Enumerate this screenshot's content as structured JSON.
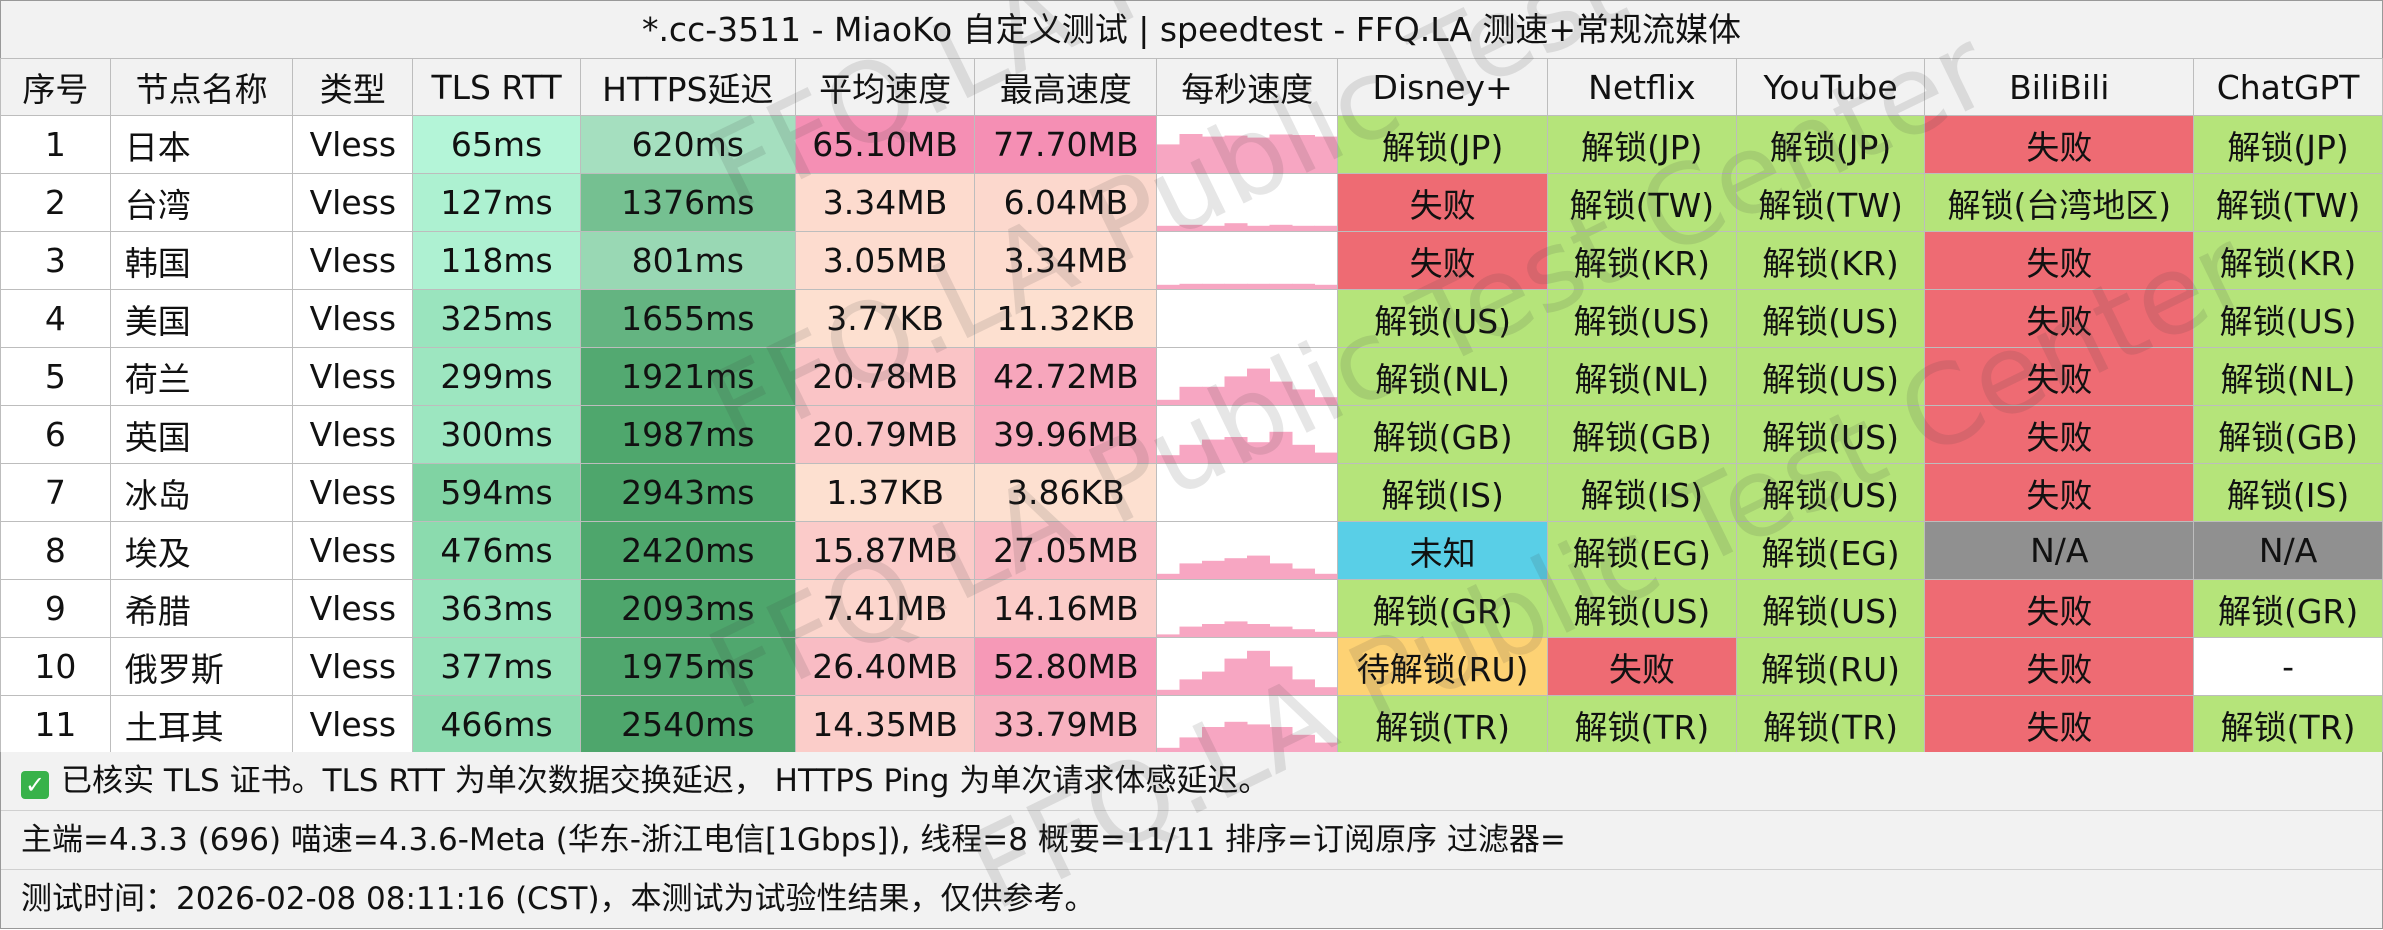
{
  "window": {
    "title": "*.cc-3511 - MiaoKo 自定义测试 | speedtest - FFQ.LA 测速+常规流媒体"
  },
  "table": {
    "headers": [
      "序号",
      "节点名称",
      "类型",
      "TLS RTT",
      "HTTPS延迟",
      "平均速度",
      "最高速度",
      "每秒速度",
      "Disney+",
      "Netflix",
      "YouTube",
      "BiliBili",
      "ChatGPT"
    ],
    "rows": [
      {
        "no": "1",
        "name": "日本",
        "type": "Vless",
        "tls": "65ms",
        "https": "620ms",
        "avg": "65.10MB",
        "max": "77.70MB",
        "spark": [
          0.55,
          0.75,
          0.7,
          0.72,
          0.68,
          0.74,
          0.73,
          0.7
        ],
        "disney": "解锁(JP)",
        "netflix": "解锁(JP)",
        "youtube": "解锁(JP)",
        "bili": "失败",
        "chatgpt": "解锁(JP)"
      },
      {
        "no": "2",
        "name": "台湾",
        "type": "Vless",
        "tls": "127ms",
        "https": "1376ms",
        "avg": "3.34MB",
        "max": "6.04MB",
        "spark": [
          0.1,
          0.12,
          0.1,
          0.15,
          0.1,
          0.12,
          0.1,
          0.1
        ],
        "disney": "失败",
        "netflix": "解锁(TW)",
        "youtube": "解锁(TW)",
        "bili": "解锁(台湾地区)",
        "chatgpt": "解锁(TW)"
      },
      {
        "no": "3",
        "name": "韩国",
        "type": "Vless",
        "tls": "118ms",
        "https": "801ms",
        "avg": "3.05MB",
        "max": "3.34MB",
        "spark": [
          0.08,
          0.1,
          0.1,
          0.1,
          0.1,
          0.1,
          0.1,
          0.08
        ],
        "disney": "失败",
        "netflix": "解锁(KR)",
        "youtube": "解锁(KR)",
        "bili": "失败",
        "chatgpt": "解锁(KR)"
      },
      {
        "no": "4",
        "name": "美国",
        "type": "Vless",
        "tls": "325ms",
        "https": "1655ms",
        "avg": "3.77KB",
        "max": "11.32KB",
        "spark": [
          0,
          0,
          0,
          0,
          0,
          0,
          0,
          0
        ],
        "disney": "解锁(US)",
        "netflix": "解锁(US)",
        "youtube": "解锁(US)",
        "bili": "失败",
        "chatgpt": "解锁(US)"
      },
      {
        "no": "5",
        "name": "荷兰",
        "type": "Vless",
        "tls": "299ms",
        "https": "1921ms",
        "avg": "20.78MB",
        "max": "42.72MB",
        "spark": [
          0.1,
          0.35,
          0.35,
          0.55,
          0.7,
          0.45,
          0.3,
          0.15
        ],
        "disney": "解锁(NL)",
        "netflix": "解锁(NL)",
        "youtube": "解锁(US)",
        "bili": "失败",
        "chatgpt": "解锁(NL)"
      },
      {
        "no": "6",
        "name": "英国",
        "type": "Vless",
        "tls": "300ms",
        "https": "1987ms",
        "avg": "20.79MB",
        "max": "39.96MB",
        "spark": [
          0.15,
          0.35,
          0.45,
          0.5,
          0.4,
          0.6,
          0.35,
          0.2
        ],
        "disney": "解锁(GB)",
        "netflix": "解锁(GB)",
        "youtube": "解锁(US)",
        "bili": "失败",
        "chatgpt": "解锁(GB)"
      },
      {
        "no": "7",
        "name": "冰岛",
        "type": "Vless",
        "tls": "594ms",
        "https": "2943ms",
        "avg": "1.37KB",
        "max": "3.86KB",
        "spark": [
          0,
          0,
          0,
          0,
          0,
          0,
          0,
          0
        ],
        "disney": "解锁(IS)",
        "netflix": "解锁(IS)",
        "youtube": "解锁(US)",
        "bili": "失败",
        "chatgpt": "解锁(IS)"
      },
      {
        "no": "8",
        "name": "埃及",
        "type": "Vless",
        "tls": "476ms",
        "https": "2420ms",
        "avg": "15.87MB",
        "max": "27.05MB",
        "spark": [
          0.1,
          0.3,
          0.35,
          0.4,
          0.45,
          0.3,
          0.2,
          0.1
        ],
        "disney": "未知",
        "netflix": "解锁(EG)",
        "youtube": "解锁(EG)",
        "bili": "N/A",
        "chatgpt": "N/A"
      },
      {
        "no": "9",
        "name": "希腊",
        "type": "Vless",
        "tls": "363ms",
        "https": "2093ms",
        "avg": "7.41MB",
        "max": "14.16MB",
        "spark": [
          0.05,
          0.2,
          0.25,
          0.3,
          0.25,
          0.2,
          0.15,
          0.1
        ],
        "disney": "解锁(GR)",
        "netflix": "解锁(US)",
        "youtube": "解锁(US)",
        "bili": "失败",
        "chatgpt": "解锁(GR)"
      },
      {
        "no": "10",
        "name": "俄罗斯",
        "type": "Vless",
        "tls": "377ms",
        "https": "1975ms",
        "avg": "26.40MB",
        "max": "52.80MB",
        "spark": [
          0.1,
          0.3,
          0.45,
          0.7,
          0.85,
          0.55,
          0.3,
          0.15
        ],
        "disney": "待解锁(RU)",
        "netflix": "失败",
        "youtube": "解锁(RU)",
        "bili": "失败",
        "chatgpt": "-"
      },
      {
        "no": "11",
        "name": "土耳其",
        "type": "Vless",
        "tls": "466ms",
        "https": "2540ms",
        "avg": "14.35MB",
        "max": "33.79MB",
        "spark": [
          0.1,
          0.3,
          0.5,
          0.6,
          0.55,
          0.5,
          0.35,
          0.2
        ],
        "disney": "解锁(TR)",
        "netflix": "解锁(TR)",
        "youtube": "解锁(TR)",
        "bili": "失败",
        "chatgpt": "解锁(TR)"
      }
    ]
  },
  "status_colors": {
    "unlock": "#b5e47a",
    "fail": "#ee6b73",
    "unknown": "#59cfe7",
    "pending": "#fdd274",
    "na": "#909090",
    "none": "#ffffff"
  },
  "notes": {
    "tls_note": "已核实 TLS 证书。TLS RTT 为单次数据交换延迟， HTTPS Ping 为单次请求体感延迟。",
    "config_line": "主端=4.3.3 (696) 喵速=4.3.6-Meta (华东-浙江电信[1Gbps]), 线程=8 概要=11/11 排序=订阅原序 过滤器=",
    "time_line": "测试时间：2026-02-08 08:11:16 (CST)，本测试为试验性结果，仅供参考。"
  },
  "watermark": {
    "text": "FFQ.LA Public Test Center"
  }
}
